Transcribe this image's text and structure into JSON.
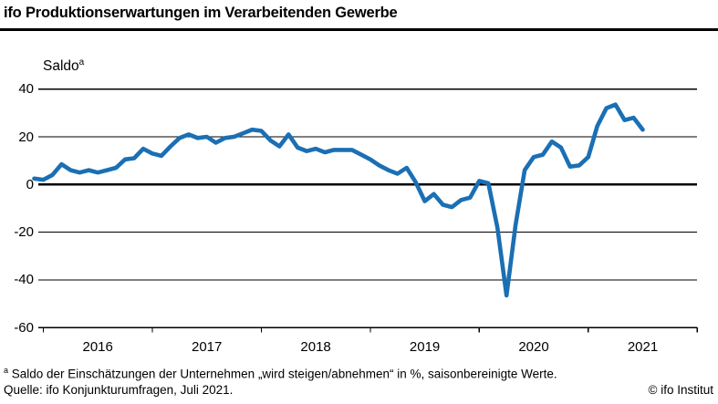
{
  "header": {
    "title": "ifo Produktionserwartungen im Verarbeitenden Gewerbe"
  },
  "chart_data": {
    "type": "line",
    "title": "ifo Produktionserwartungen im Verarbeitenden Gewerbe",
    "ylabel": "Saldo",
    "ylabel_marker": "a",
    "ylim": [
      -60,
      40
    ],
    "yticks": [
      40,
      20,
      0,
      -20,
      -40,
      -60
    ],
    "x": {
      "start": "2015-12",
      "end": "2021-07",
      "freq": "monthly"
    },
    "x_year_labels": [
      "2016",
      "2017",
      "2018",
      "2019",
      "2020",
      "2021"
    ],
    "grid": "horizontal",
    "zero_line": true,
    "legend_position": "none",
    "series": [
      {
        "name": "Produktionserwartungen (Saldo, saisonbereinigt)",
        "color": "#1b6fb4",
        "values": [
          2.5,
          2,
          4,
          8.5,
          6,
          5,
          6,
          5,
          6,
          7,
          10.5,
          11,
          15,
          13,
          12,
          16,
          19.5,
          21,
          19.5,
          20,
          17.5,
          19.5,
          20,
          21.5,
          23,
          22.5,
          18.5,
          16,
          21,
          15.5,
          14,
          15,
          13.5,
          14.5,
          14.5,
          14.5,
          12.5,
          10.5,
          8,
          6,
          4.5,
          7,
          1,
          -7,
          -4,
          -8.5,
          -9.5,
          -6.5,
          -5.5,
          1.5,
          0.5,
          -18,
          -46.5,
          -17,
          6,
          11.5,
          12.5,
          18,
          15.5,
          7.5,
          8,
          11.5,
          24.5,
          32,
          33.5,
          27,
          28,
          23
        ]
      }
    ]
  },
  "footer": {
    "footnote_marker": "a",
    "footnote": " Saldo der Einschätzungen der Unternehmen „wird steigen/abnehmen“ in %, saisonbereinigte Werte.",
    "source": "Quelle: ifo Konjunkturumfragen, Juli 2021.",
    "copyright": "© ifo Institut"
  }
}
